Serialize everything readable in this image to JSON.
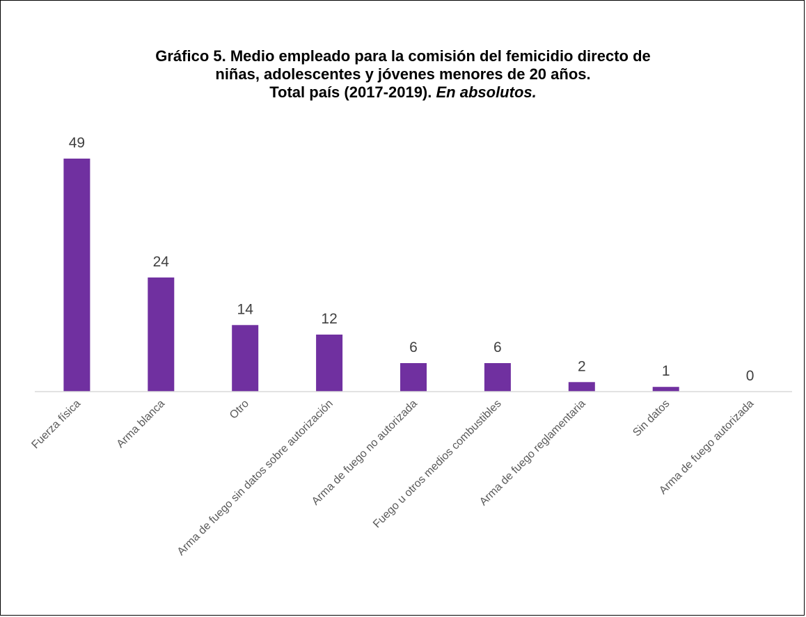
{
  "chart_data": {
    "type": "bar",
    "title": {
      "line1": "Gráfico 5. Medio empleado para la comisión del femicidio directo de",
      "line2": "niñas, adolescentes y jóvenes menores de 20 años.",
      "line3_bold": "Total país (2017-2019).",
      "line3_italic": "En absolutos."
    },
    "xlabel": "",
    "ylabel": "",
    "categories": [
      "Fuerza física",
      "Arma blanca",
      "Otro",
      "Arma de fuego sin datos sobre autorización",
      "Arma de fuego no autorizada",
      "Fuego u otros medios combustibles",
      "Arma de fuego reglamentaria",
      "Sin datos",
      "Arma de fuego autorizada"
    ],
    "values": [
      49,
      24,
      14,
      12,
      6,
      6,
      2,
      1,
      0
    ],
    "ylim": [
      0,
      49
    ],
    "grid": false,
    "legend": "none",
    "colors": {
      "bar": "#7030A0",
      "axis": "#d9d9d9"
    }
  }
}
